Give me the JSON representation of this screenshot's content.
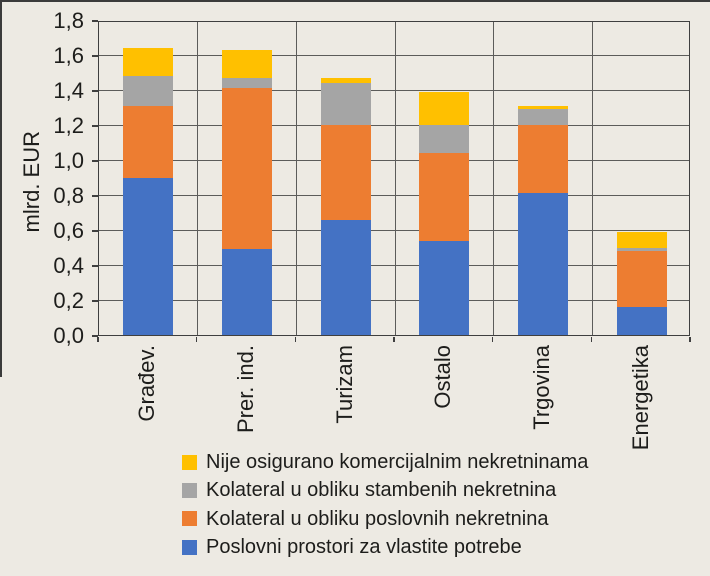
{
  "figure": {
    "background_color": "#EDEAE3",
    "partial_border_color": "#3B3B3B",
    "text_color": "#1D1D1B",
    "gridline_color": "#5C5C5A",
    "axis_color": "#3F3F3F"
  },
  "chart_data": {
    "type": "bar",
    "stacked": true,
    "title": "",
    "xlabel": "",
    "ylabel": "mlrd. EUR",
    "ylim": [
      0,
      1.8
    ],
    "ytick_step": 0.2,
    "ytick_labels": [
      "0,0",
      "0,2",
      "0,4",
      "0,6",
      "0,8",
      "1,0",
      "1,2",
      "1,4",
      "1,6",
      "1,8"
    ],
    "decimal_separator": ",",
    "grid": true,
    "vertical_category_gridlines": true,
    "legend_position": "bottom-left",
    "legend_order": "reverse-of-stack",
    "categories": [
      "Građev.",
      "Prer. ind.",
      "Turizam",
      "Ostalo",
      "Trgovina",
      "Energetika"
    ],
    "series": [
      {
        "name": "Poslovni prostori za vlastite potrebe",
        "color": "#4472C4",
        "values": [
          0.9,
          0.49,
          0.66,
          0.54,
          0.81,
          0.16
        ]
      },
      {
        "name": "Kolateral u obliku poslovnih nekretnina",
        "color": "#ED7D31",
        "values": [
          0.41,
          0.92,
          0.54,
          0.5,
          0.39,
          0.32
        ]
      },
      {
        "name": "Kolateral u obliku stambenih nekretnina",
        "color": "#A5A5A5",
        "values": [
          0.17,
          0.06,
          0.24,
          0.16,
          0.09,
          0.02
        ]
      },
      {
        "name": "Nije osigurano komercijalnim nekretninama",
        "color": "#FFC000",
        "values": [
          0.16,
          0.16,
          0.03,
          0.19,
          0.02,
          0.09
        ]
      }
    ],
    "stack_totals": [
      1.64,
      1.63,
      1.47,
      1.39,
      1.31,
      0.59
    ]
  }
}
